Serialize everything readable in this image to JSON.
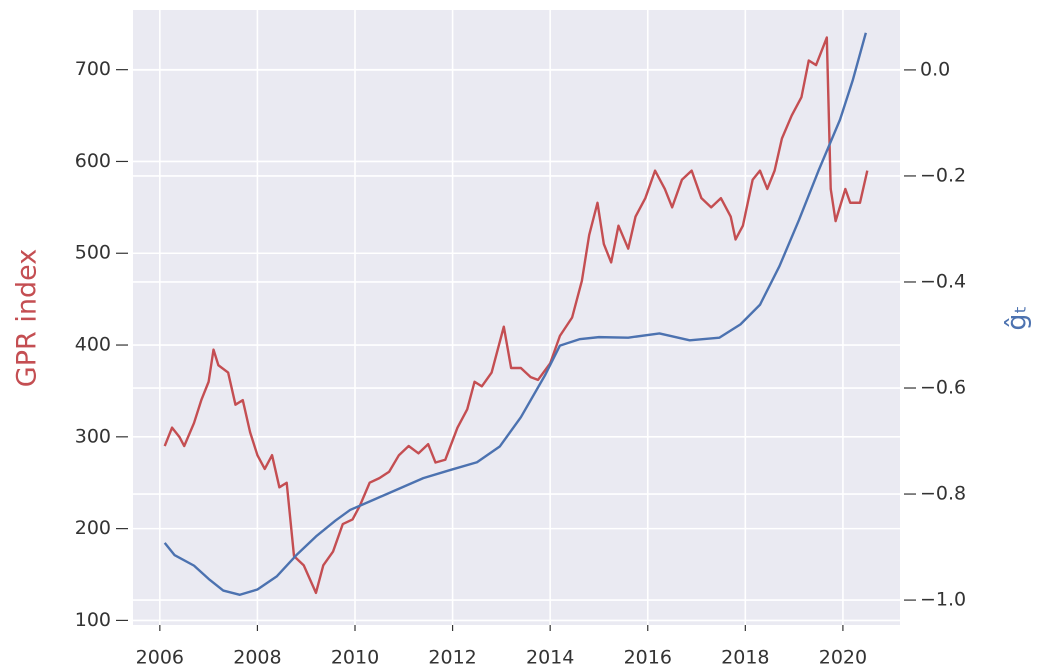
{
  "chart_data": {
    "type": "line",
    "ylabel": "GPR index",
    "y2label": "ĝₜ",
    "xlim": [
      2005.45,
      2021.17
    ],
    "xticks": [
      2006,
      2008,
      2010,
      2012,
      2014,
      2016,
      2018,
      2020
    ],
    "ylim": [
      95,
      765
    ],
    "yticks": [
      100,
      200,
      300,
      400,
      500,
      600,
      700
    ],
    "y2lim": [
      -1.047,
      0.113
    ],
    "y2ticks": [
      {
        "value": -1.0,
        "label": "−1.0"
      },
      {
        "value": -0.8,
        "label": "−0.8"
      },
      {
        "value": -0.6,
        "label": "−0.6"
      },
      {
        "value": -0.4,
        "label": "−0.4"
      },
      {
        "value": -0.2,
        "label": "−0.2"
      },
      {
        "value": 0.0,
        "label": "0.0"
      }
    ],
    "ylabel_color": "#c44e52",
    "y2label_color": "#4c72b0",
    "grid": true,
    "series": [
      {
        "color": "#c44e52",
        "axis": "y",
        "x": [
          2006.1,
          2006.25,
          2006.4,
          2006.5,
          2006.7,
          2006.85,
          2007.0,
          2007.1,
          2007.2,
          2007.4,
          2007.55,
          2007.7,
          2007.85,
          2008.0,
          2008.15,
          2008.3,
          2008.45,
          2008.6,
          2008.75,
          2008.95,
          2009.2,
          2009.35,
          2009.55,
          2009.75,
          2009.95,
          2010.1,
          2010.3,
          2010.5,
          2010.7,
          2010.9,
          2011.1,
          2011.3,
          2011.5,
          2011.65,
          2011.85,
          2012.1,
          2012.3,
          2012.45,
          2012.6,
          2012.8,
          2013.05,
          2013.2,
          2013.4,
          2013.6,
          2013.75,
          2014.0,
          2014.2,
          2014.45,
          2014.65,
          2014.8,
          2014.97,
          2015.1,
          2015.25,
          2015.4,
          2015.6,
          2015.75,
          2015.95,
          2016.15,
          2016.35,
          2016.5,
          2016.7,
          2016.9,
          2017.1,
          2017.3,
          2017.5,
          2017.7,
          2017.8,
          2017.95,
          2018.15,
          2018.3,
          2018.45,
          2018.6,
          2018.75,
          2018.95,
          2019.15,
          2019.3,
          2019.45,
          2019.67,
          2019.75,
          2019.85,
          2020.05,
          2020.15,
          2020.35,
          2020.5
        ],
        "values": [
          290,
          310,
          300,
          290,
          315,
          340,
          360,
          395,
          378,
          370,
          335,
          340,
          305,
          280,
          265,
          280,
          245,
          250,
          170,
          160,
          130,
          160,
          175,
          205,
          210,
          225,
          250,
          255,
          262,
          280,
          290,
          282,
          292,
          272,
          275,
          310,
          330,
          360,
          355,
          370,
          420,
          375,
          375,
          365,
          362,
          380,
          410,
          430,
          470,
          520,
          555,
          510,
          490,
          530,
          505,
          540,
          560,
          590,
          570,
          550,
          580,
          590,
          560,
          550,
          560,
          540,
          515,
          530,
          580,
          590,
          570,
          590,
          625,
          650,
          670,
          710,
          705,
          735,
          570,
          535,
          570,
          555,
          555,
          590
        ]
      },
      {
        "color": "#4c72b0",
        "axis": "y2",
        "x": [
          2006.1,
          2006.3,
          2006.7,
          2007.0,
          2007.3,
          2007.64,
          2008.0,
          2008.4,
          2008.8,
          2009.2,
          2009.6,
          2009.9,
          2010.4,
          2010.9,
          2011.4,
          2011.94,
          2012.5,
          2012.97,
          2013.4,
          2013.9,
          2014.2,
          2014.6,
          2015.0,
          2015.6,
          2016.24,
          2016.86,
          2017.47,
          2017.9,
          2018.3,
          2018.7,
          2019.1,
          2019.5,
          2019.94,
          2020.2,
          2020.47
        ],
        "values": [
          -0.892,
          -0.915,
          -0.935,
          -0.96,
          -0.982,
          -0.99,
          -0.98,
          -0.955,
          -0.915,
          -0.88,
          -0.85,
          -0.83,
          -0.81,
          -0.79,
          -0.77,
          -0.755,
          -0.74,
          -0.71,
          -0.655,
          -0.575,
          -0.52,
          -0.508,
          -0.504,
          -0.505,
          -0.497,
          -0.51,
          -0.505,
          -0.48,
          -0.443,
          -0.37,
          -0.283,
          -0.19,
          -0.094,
          -0.02,
          0.07
        ]
      }
    ]
  }
}
